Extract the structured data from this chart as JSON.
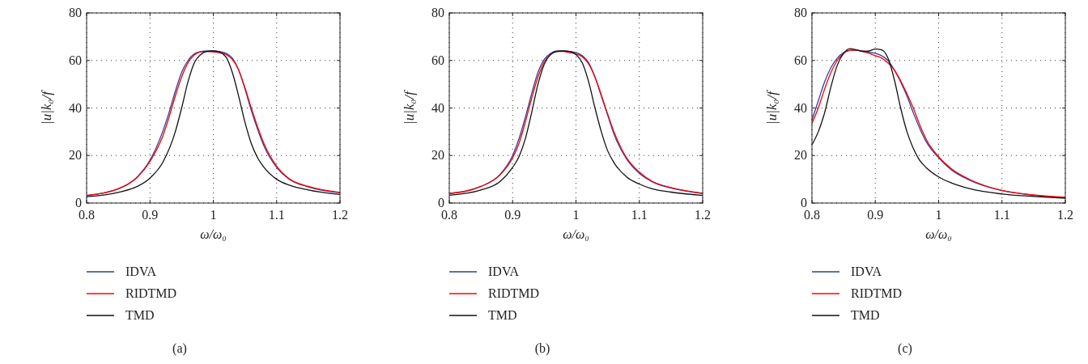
{
  "chart_data": [
    {
      "type": "line",
      "title": "(a)",
      "xlabel": "ω/ω₀",
      "ylabel": "|u|k₀/f",
      "xlim": [
        0.8,
        1.2
      ],
      "ylim": [
        0,
        80
      ],
      "xticks": [
        0.8,
        0.9,
        1,
        1.1,
        1.2
      ],
      "yticks": [
        0,
        20,
        40,
        60,
        80
      ],
      "grid": true,
      "legend": "bottom",
      "line_style": "solid",
      "series": [
        {
          "name": "IDVA",
          "color": "#2b3fa0",
          "x": [
            0.8,
            0.85,
            0.88,
            0.9,
            0.92,
            0.93,
            0.94,
            0.95,
            0.96,
            0.97,
            0.98,
            0.99,
            1.0,
            1.01,
            1.02,
            1.03,
            1.04,
            1.05,
            1.06,
            1.07,
            1.08,
            1.1,
            1.12,
            1.15,
            1.2
          ],
          "values": [
            3.2,
            6,
            11,
            18,
            30,
            38,
            47,
            55,
            60,
            62.8,
            63.7,
            64,
            64,
            63.8,
            63,
            61,
            56,
            48,
            39,
            31,
            24,
            15,
            10,
            6.8,
            4.3
          ]
        },
        {
          "name": "RIDTMD",
          "color": "#ff0000",
          "x": [
            0.8,
            0.85,
            0.88,
            0.9,
            0.92,
            0.93,
            0.94,
            0.95,
            0.96,
            0.97,
            0.98,
            0.99,
            1.0,
            1.01,
            1.02,
            1.03,
            1.04,
            1.05,
            1.06,
            1.07,
            1.08,
            1.1,
            1.12,
            1.15,
            1.2
          ],
          "values": [
            3.2,
            6,
            10.8,
            17.5,
            28,
            36,
            45,
            53,
            59,
            62.3,
            63.6,
            63.8,
            63.6,
            63.2,
            62.5,
            60.5,
            56,
            48.5,
            40,
            32,
            25,
            15.5,
            10.2,
            7,
            4.5
          ]
        },
        {
          "name": "TMD",
          "color": "#111111",
          "x": [
            0.8,
            0.85,
            0.88,
            0.9,
            0.92,
            0.94,
            0.95,
            0.96,
            0.97,
            0.98,
            0.99,
            1.0,
            1.01,
            1.02,
            1.03,
            1.04,
            1.05,
            1.06,
            1.07,
            1.08,
            1.1,
            1.12,
            1.15,
            1.2
          ],
          "values": [
            2.7,
            4.5,
            7,
            10.5,
            17,
            30,
            40,
            51,
            59,
            62.5,
            63.8,
            64,
            63.5,
            61.5,
            55,
            45,
            34,
            25,
            19,
            15,
            10,
            7.5,
            5.5,
            3.6
          ]
        }
      ]
    },
    {
      "type": "line",
      "title": "(b)",
      "xlabel": "ω/ω₀",
      "ylabel": "|u|k₀/f",
      "xlim": [
        0.8,
        1.2
      ],
      "ylim": [
        0,
        80
      ],
      "xticks": [
        0.8,
        0.9,
        1,
        1.1,
        1.2
      ],
      "yticks": [
        0,
        20,
        40,
        60,
        80
      ],
      "grid": true,
      "legend": "bottom",
      "line_style": "solid",
      "series": [
        {
          "name": "IDVA",
          "color": "#2b3fa0",
          "x": [
            0.8,
            0.85,
            0.88,
            0.9,
            0.91,
            0.92,
            0.93,
            0.94,
            0.95,
            0.96,
            0.97,
            0.98,
            0.99,
            1.0,
            1.01,
            1.02,
            1.03,
            1.04,
            1.05,
            1.06,
            1.08,
            1.1,
            1.12,
            1.15,
            1.2
          ],
          "values": [
            4,
            7,
            12,
            20,
            27,
            36,
            46,
            55,
            60.5,
            63,
            64,
            64,
            63.8,
            63.3,
            62,
            59,
            53,
            45,
            37,
            29,
            18.5,
            12.5,
            9,
            6.3,
            4
          ]
        },
        {
          "name": "RIDTMD",
          "color": "#ff0000",
          "x": [
            0.8,
            0.85,
            0.88,
            0.9,
            0.91,
            0.92,
            0.93,
            0.94,
            0.95,
            0.96,
            0.97,
            0.98,
            0.99,
            1.0,
            1.01,
            1.02,
            1.03,
            1.04,
            1.05,
            1.06,
            1.08,
            1.1,
            1.12,
            1.15,
            1.2
          ],
          "values": [
            4,
            7,
            11.8,
            19,
            25,
            34,
            44,
            53,
            59.5,
            62.5,
            63.8,
            63.8,
            63.3,
            62.7,
            61.5,
            58.5,
            53,
            45.5,
            37.5,
            30,
            19,
            13,
            9.2,
            6.5,
            4.1
          ]
        },
        {
          "name": "TMD",
          "color": "#111111",
          "x": [
            0.8,
            0.85,
            0.88,
            0.9,
            0.91,
            0.92,
            0.93,
            0.94,
            0.95,
            0.96,
            0.97,
            0.98,
            0.99,
            1.0,
            1.01,
            1.02,
            1.03,
            1.04,
            1.05,
            1.06,
            1.08,
            1.1,
            1.12,
            1.15,
            1.2
          ],
          "values": [
            3.3,
            5.5,
            9,
            15,
            19.5,
            27,
            38,
            50,
            58.5,
            62.5,
            63.8,
            64,
            63.8,
            62.5,
            59,
            51,
            40,
            30,
            22,
            17,
            11,
            8,
            6,
            4.6,
            3.2
          ]
        }
      ]
    },
    {
      "type": "line",
      "title": "(c)",
      "xlabel": "ω/ω₀",
      "ylabel": "|u|k₀/f",
      "xlim": [
        0.8,
        1.2
      ],
      "ylim": [
        0,
        80
      ],
      "xticks": [
        0.8,
        0.9,
        1,
        1.1,
        1.2
      ],
      "yticks": [
        0,
        20,
        40,
        60,
        80
      ],
      "grid": true,
      "legend": "bottom",
      "line_style": "solid",
      "series": [
        {
          "name": "IDVA",
          "color": "#2b3fa0",
          "x": [
            0.8,
            0.81,
            0.82,
            0.83,
            0.84,
            0.85,
            0.86,
            0.87,
            0.88,
            0.89,
            0.9,
            0.91,
            0.92,
            0.93,
            0.94,
            0.95,
            0.96,
            0.97,
            0.98,
            1.0,
            1.02,
            1.05,
            1.1,
            1.15,
            1.2
          ],
          "values": [
            35,
            43,
            51,
            57,
            61,
            63.3,
            64.2,
            64.3,
            64,
            63.5,
            63,
            62,
            60,
            56,
            51,
            45,
            38,
            31.5,
            26,
            19,
            14,
            9.5,
            5.2,
            3.3,
            2.3
          ]
        },
        {
          "name": "RIDTMD",
          "color": "#ff0000",
          "x": [
            0.8,
            0.81,
            0.82,
            0.83,
            0.84,
            0.85,
            0.86,
            0.87,
            0.88,
            0.89,
            0.9,
            0.91,
            0.92,
            0.93,
            0.94,
            0.95,
            0.96,
            0.97,
            0.98,
            1.0,
            1.02,
            1.05,
            1.1,
            1.15,
            1.2
          ],
          "values": [
            33.5,
            40,
            48,
            55,
            60,
            63,
            64.3,
            64.3,
            63.8,
            63,
            62,
            61,
            59,
            56,
            51.5,
            46,
            40,
            33,
            27,
            19.5,
            14.5,
            9.8,
            5.3,
            3.4,
            2.4
          ]
        },
        {
          "name": "TMD",
          "color": "#111111",
          "x": [
            0.8,
            0.81,
            0.82,
            0.83,
            0.84,
            0.85,
            0.86,
            0.87,
            0.88,
            0.89,
            0.9,
            0.91,
            0.92,
            0.93,
            0.94,
            0.95,
            0.96,
            0.97,
            0.98,
            1.0,
            1.02,
            1.05,
            1.1,
            1.15,
            1.2
          ],
          "values": [
            24.5,
            30,
            38,
            49,
            58,
            63,
            65,
            64.5,
            63.8,
            64,
            64.8,
            64.5,
            61,
            52,
            40,
            30,
            23,
            18,
            15,
            11,
            8.5,
            6,
            3.8,
            2.8,
            2
          ]
        }
      ]
    }
  ]
}
